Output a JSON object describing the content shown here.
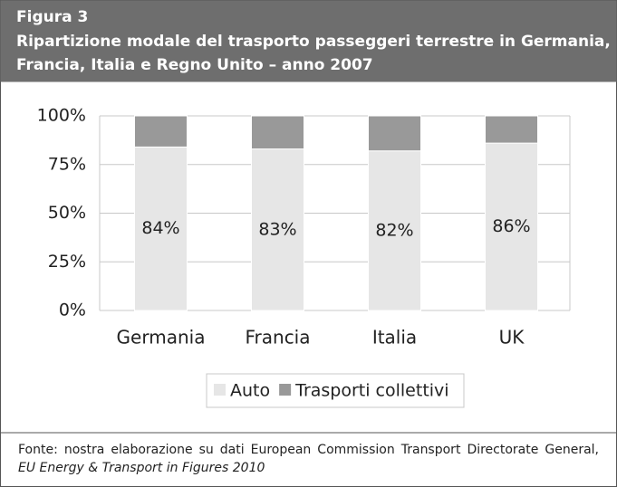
{
  "chart_data": {
    "type": "stacked_bar",
    "figure_label": "Figura 3",
    "title": [
      "Ripartizione modale del trasporto passeggeri terrestre in Germania,",
      "Francia, Italia e Regno Unito – anno 2007"
    ],
    "categories": [
      "Germania",
      "Francia",
      "Italia",
      "UK"
    ],
    "series": [
      {
        "name": "Auto",
        "color": "#e6e6e6",
        "values": [
          84,
          83,
          82,
          86
        ],
        "value_labels": [
          "84%",
          "83%",
          "82%",
          "86%"
        ]
      },
      {
        "name": "Trasporti collettivi",
        "color": "#999999",
        "values": [
          16,
          17,
          18,
          14
        ]
      }
    ],
    "ylim": [
      0,
      100
    ],
    "yticks": [
      {
        "value": 0,
        "label": "0%"
      },
      {
        "value": 25,
        "label": "25%"
      },
      {
        "value": 50,
        "label": "50%"
      },
      {
        "value": 75,
        "label": "75%"
      },
      {
        "value": 100,
        "label": "100%"
      }
    ],
    "grid": true,
    "legend": "bottom",
    "source": "Fonte: nostra elaborazione su dati European Commission Transport Directorate General,",
    "source_italic": "EU Energy & Transport in Figures 2010"
  }
}
